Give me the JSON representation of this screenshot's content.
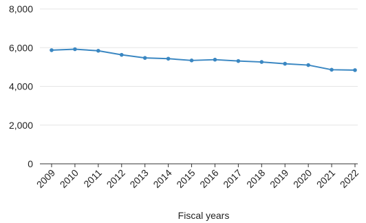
{
  "chart_data": {
    "type": "line",
    "title": "",
    "xlabel": "Fiscal years",
    "ylabel": "",
    "x": [
      "2009",
      "2010",
      "2011",
      "2012",
      "2013",
      "2014",
      "2015",
      "2016",
      "2017",
      "2018",
      "2019",
      "2020",
      "2021",
      "2022"
    ],
    "series": [
      {
        "values": [
          5870,
          5920,
          5840,
          5630,
          5470,
          5430,
          5340,
          5380,
          5310,
          5260,
          5170,
          5100,
          4860,
          4840
        ]
      }
    ],
    "ylim": [
      0,
      8000
    ],
    "yticks": [
      0,
      2000,
      4000,
      6000,
      8000
    ],
    "ytick_labels": [
      "0",
      "2,000",
      "4,000",
      "6,000",
      "8,000"
    ],
    "grid": "horizontal",
    "legend": "none",
    "colors": {
      "series": "#3a87c2",
      "grid": "#e6e6e6",
      "axis": "#333333",
      "text": "#222222"
    }
  }
}
